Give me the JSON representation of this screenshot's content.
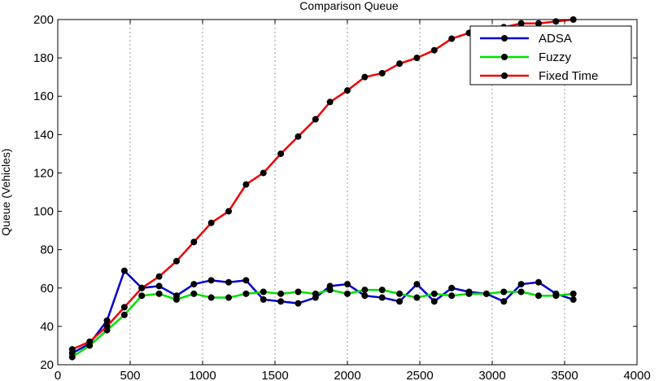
{
  "chart_data": {
    "type": "line",
    "title": "Comparison Queue",
    "xlabel": "",
    "ylabel": "Queue (Vehicles)",
    "xlim": [
      0,
      4000
    ],
    "ylim": [
      20,
      200
    ],
    "xticks": [
      "0",
      "500",
      "1000",
      "1500",
      "2000",
      "2500",
      "3000",
      "3500",
      "4000"
    ],
    "yticks": [
      "20",
      "40",
      "60",
      "80",
      "100",
      "120",
      "140",
      "160",
      "180",
      "200"
    ],
    "grid": "vertical dashed",
    "legend_position": "top-right",
    "x": [
      100,
      220,
      340,
      460,
      580,
      700,
      820,
      940,
      1060,
      1180,
      1300,
      1420,
      1540,
      1660,
      1780,
      1880,
      2000,
      2120,
      2240,
      2360,
      2480,
      2600,
      2720,
      2840,
      2960,
      3080,
      3200,
      3320,
      3440,
      3560
    ],
    "series": [
      {
        "name": "ADSA",
        "color": "#0000cc",
        "values": [
          26,
          31,
          43,
          69,
          60,
          61,
          56,
          62,
          64,
          63,
          64,
          54,
          53,
          52,
          55,
          61,
          62,
          56,
          55,
          53,
          62,
          53,
          60,
          58,
          57,
          53,
          62,
          63,
          57,
          54
        ]
      },
      {
        "name": "Fuzzy",
        "color": "#00e000",
        "values": [
          24,
          30,
          38,
          46,
          56,
          57,
          54,
          57,
          55,
          55,
          57,
          58,
          57,
          58,
          57,
          59,
          57,
          59,
          59,
          57,
          55,
          57,
          56,
          57,
          57,
          58,
          58,
          56,
          56,
          57
        ]
      },
      {
        "name": "Fixed Time",
        "color": "#ee0000",
        "values": [
          28,
          32,
          40,
          50,
          60,
          66,
          74,
          84,
          94,
          100,
          114,
          120,
          130,
          139,
          148,
          157,
          163,
          170,
          172,
          177,
          180,
          184,
          190,
          193,
          195,
          196,
          198,
          198,
          199,
          200
        ]
      }
    ]
  }
}
